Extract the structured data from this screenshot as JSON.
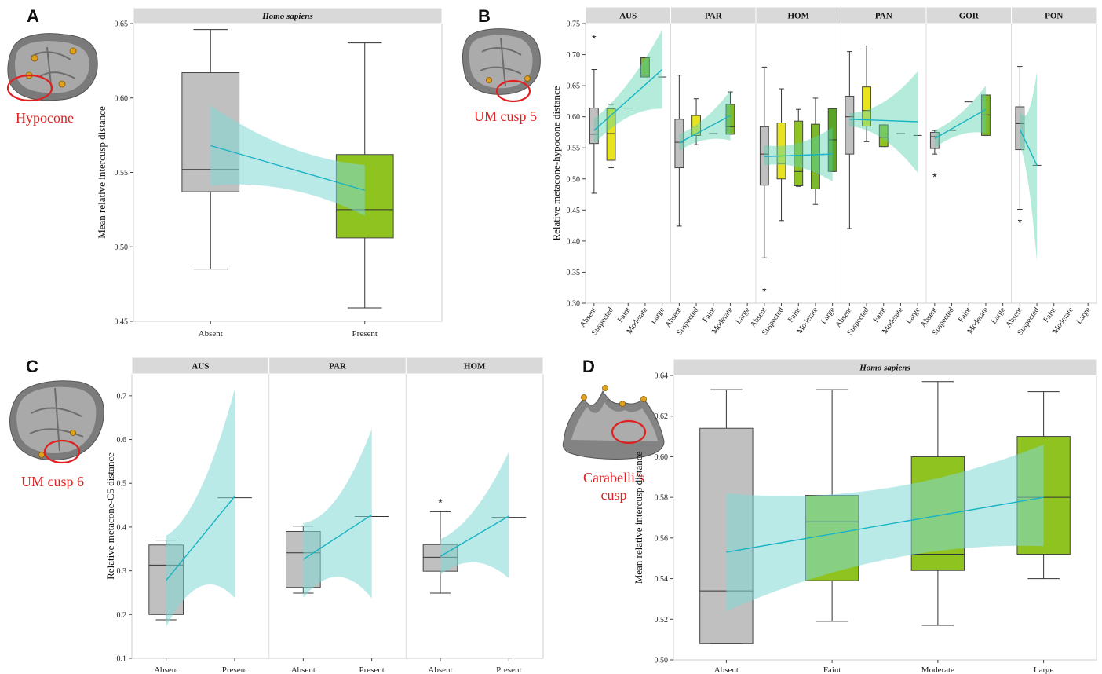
{
  "colors": {
    "absent": "#c0c0c0",
    "suspected": "#e7e41f",
    "faint": "#8fc31f",
    "moderate": "#7db82a",
    "large": "#5aa528",
    "ci_band": "#7fd8d6",
    "ci_band_B": "#59d3ae",
    "fit_line": "#18b3c4",
    "strip_bg": "#d9d9d9",
    "annotation": "#e02020"
  },
  "chart_data": [
    {
      "id": "A",
      "panel_letter": "A",
      "type": "box",
      "strip": [
        "Homo sapiens"
      ],
      "tooth_label": [
        "Hypocone"
      ],
      "ylabel": "Mean relative intercusp distance",
      "ylim": [
        0.45,
        0.65
      ],
      "yticks": [
        0.45,
        0.5,
        0.55,
        0.6,
        0.65
      ],
      "ytick_labels": [
        "0.45",
        "0.50",
        "0.55",
        "0.60",
        "0.65"
      ],
      "categories": [
        "Absent",
        "Present"
      ],
      "groups": [
        [
          {
            "cat": "Absent",
            "color": "absent",
            "min": 0.485,
            "q1": 0.537,
            "med": 0.552,
            "q3": 0.617,
            "max": 0.646
          },
          {
            "cat": "Present",
            "color": "faint",
            "min": 0.459,
            "q1": 0.506,
            "med": 0.525,
            "q3": 0.562,
            "max": 0.637
          }
        ]
      ],
      "fits": [
        {
          "y0": 0.568,
          "y1": 0.538,
          "lo0": 0.541,
          "hi0": 0.595,
          "lo1": 0.521,
          "hi1": 0.555
        }
      ],
      "outliers": []
    },
    {
      "id": "B",
      "panel_letter": "B",
      "type": "box",
      "strip": [
        "AUS",
        "PAR",
        "HOM",
        "PAN",
        "GOR",
        "PON"
      ],
      "tooth_label": [
        "UM cusp 5"
      ],
      "ylabel": "Relative metacone-hypocone distance",
      "ylim": [
        0.3,
        0.75
      ],
      "yticks": [
        0.3,
        0.35,
        0.4,
        0.45,
        0.5,
        0.55,
        0.6,
        0.65,
        0.7,
        0.75
      ],
      "ytick_labels": [
        "0.30",
        "0.35",
        "0.40",
        "0.45",
        "0.50",
        "0.55",
        "0.60",
        "0.65",
        "0.70",
        "0.75"
      ],
      "categories": [
        "Absent",
        "Suspected",
        "Faint",
        "Moderate",
        "Large"
      ],
      "groups": [
        [
          {
            "cat": "Absent",
            "color": "absent",
            "min": 0.477,
            "q1": 0.557,
            "med": 0.572,
            "q3": 0.614,
            "max": 0.676
          },
          {
            "cat": "Suspected",
            "color": "suspected",
            "min": 0.518,
            "q1": 0.53,
            "med": 0.573,
            "q3": 0.613,
            "max": 0.62
          },
          {
            "cat": "Faint",
            "color": "faint",
            "single": 0.614
          },
          {
            "cat": "Moderate",
            "color": "moderate",
            "min": 0.664,
            "q1": 0.664,
            "med": 0.667,
            "q3": 0.695,
            "max": 0.695
          },
          {
            "cat": "Large",
            "color": "large",
            "single": 0.664
          }
        ],
        [
          {
            "cat": "Absent",
            "color": "absent",
            "min": 0.424,
            "q1": 0.518,
            "med": 0.559,
            "q3": 0.596,
            "max": 0.667
          },
          {
            "cat": "Suspected",
            "color": "suspected",
            "min": 0.555,
            "q1": 0.57,
            "med": 0.585,
            "q3": 0.602,
            "max": 0.629
          },
          {
            "cat": "Faint",
            "color": "faint",
            "single": 0.573
          },
          {
            "cat": "Moderate",
            "color": "moderate",
            "min": 0.572,
            "q1": 0.572,
            "med": 0.584,
            "q3": 0.62,
            "max": 0.64
          }
        ],
        [
          {
            "cat": "Absent",
            "color": "absent",
            "min": 0.373,
            "q1": 0.49,
            "med": 0.54,
            "q3": 0.584,
            "max": 0.68
          },
          {
            "cat": "Suspected",
            "color": "suspected",
            "min": 0.433,
            "q1": 0.5,
            "med": 0.525,
            "q3": 0.59,
            "max": 0.645
          },
          {
            "cat": "Faint",
            "color": "faint",
            "min": 0.488,
            "q1": 0.489,
            "med": 0.512,
            "q3": 0.593,
            "max": 0.612
          },
          {
            "cat": "Moderate",
            "color": "moderate",
            "min": 0.459,
            "q1": 0.484,
            "med": 0.508,
            "q3": 0.588,
            "max": 0.63
          },
          {
            "cat": "Large",
            "color": "large",
            "min": 0.512,
            "q1": 0.512,
            "med": 0.563,
            "q3": 0.613,
            "max": 0.613
          }
        ],
        [
          {
            "cat": "Absent",
            "color": "absent",
            "min": 0.42,
            "q1": 0.54,
            "med": 0.6,
            "q3": 0.633,
            "max": 0.705
          },
          {
            "cat": "Suspected",
            "color": "suspected",
            "min": 0.56,
            "q1": 0.585,
            "med": 0.61,
            "q3": 0.648,
            "max": 0.714
          },
          {
            "cat": "Faint",
            "color": "faint",
            "min": 0.552,
            "q1": 0.552,
            "med": 0.567,
            "q3": 0.587,
            "max": 0.587
          },
          {
            "cat": "Moderate",
            "color": "moderate",
            "single": 0.573
          },
          {
            "cat": "Large",
            "color": "large",
            "single": 0.57
          }
        ],
        [
          {
            "cat": "Absent",
            "color": "absent",
            "min": 0.54,
            "q1": 0.549,
            "med": 0.568,
            "q3": 0.575,
            "max": 0.578
          },
          {
            "cat": "Suspected",
            "color": "suspected",
            "single": 0.578
          },
          {
            "cat": "Faint",
            "color": "faint",
            "single": 0.624
          },
          {
            "cat": "Moderate",
            "color": "moderate",
            "min": 0.57,
            "q1": 0.57,
            "med": 0.603,
            "q3": 0.635,
            "max": 0.635
          }
        ],
        [
          {
            "cat": "Absent",
            "color": "absent",
            "min": 0.451,
            "q1": 0.547,
            "med": 0.589,
            "q3": 0.616,
            "max": 0.681
          },
          {
            "cat": "Suspected",
            "color": "suspected",
            "single": 0.522
          }
        ]
      ],
      "fits": [
        {
          "x0": 0,
          "x1": 4,
          "y0": 0.578,
          "y1": 0.676,
          "lo0": 0.556,
          "hi0": 0.597,
          "lo1": 0.613,
          "hi1": 0.74
        },
        {
          "x0": 0,
          "x1": 3,
          "y0": 0.558,
          "y1": 0.602,
          "lo0": 0.545,
          "hi0": 0.572,
          "lo1": 0.562,
          "hi1": 0.642
        },
        {
          "x0": 0,
          "x1": 4,
          "y0": 0.536,
          "y1": 0.54,
          "lo0": 0.522,
          "hi0": 0.554,
          "lo1": 0.496,
          "hi1": 0.583
        },
        {
          "x0": 0,
          "x1": 4,
          "y0": 0.596,
          "y1": 0.592,
          "lo0": 0.585,
          "hi0": 0.606,
          "lo1": 0.51,
          "hi1": 0.673
        },
        {
          "x0": 0,
          "x1": 3,
          "y0": 0.565,
          "y1": 0.612,
          "lo0": 0.55,
          "hi0": 0.578,
          "lo1": 0.574,
          "hi1": 0.65
        },
        {
          "x0": 0,
          "x1": 1,
          "y0": 0.58,
          "y1": 0.522,
          "lo0": 0.553,
          "hi0": 0.609,
          "lo1": 0.368,
          "hi1": 0.672
        }
      ],
      "outliers": [
        {
          "group": 0,
          "cat": 0,
          "y": 0.73
        },
        {
          "group": 2,
          "cat": 0,
          "y": 0.323
        },
        {
          "group": 4,
          "cat": 0,
          "y": 0.507
        },
        {
          "group": 5,
          "cat": 0,
          "y": 0.434
        }
      ]
    },
    {
      "id": "C",
      "panel_letter": "C",
      "type": "box",
      "strip": [
        "AUS",
        "PAR",
        "HOM"
      ],
      "tooth_label": [
        "UM cusp 6"
      ],
      "ylabel": "Relative metacone-C5 distance",
      "ylim": [
        0.1,
        0.75
      ],
      "yticks": [
        0.1,
        0.2,
        0.3,
        0.4,
        0.5,
        0.6,
        0.7
      ],
      "ytick_labels": [
        "0.1",
        "0.2",
        "0.3",
        "0.4",
        "0.5",
        "0.6",
        "0.7"
      ],
      "categories": [
        "Absent",
        "Present"
      ],
      "groups": [
        [
          {
            "cat": "Absent",
            "color": "absent",
            "min": 0.188,
            "q1": 0.2,
            "med": 0.313,
            "q3": 0.359,
            "max": 0.37
          },
          {
            "cat": "Present",
            "color": "faint",
            "single": 0.467
          }
        ],
        [
          {
            "cat": "Absent",
            "color": "absent",
            "min": 0.249,
            "q1": 0.262,
            "med": 0.341,
            "q3": 0.39,
            "max": 0.402
          },
          {
            "cat": "Present",
            "color": "faint",
            "single": 0.424
          }
        ],
        [
          {
            "cat": "Absent",
            "color": "absent",
            "min": 0.249,
            "q1": 0.299,
            "med": 0.331,
            "q3": 0.36,
            "max": 0.435
          },
          {
            "cat": "Present",
            "color": "faint",
            "single": 0.422
          }
        ]
      ],
      "fits": [
        {
          "y0": 0.278,
          "y1": 0.47,
          "lo0": 0.172,
          "hi0": 0.38,
          "lo1": 0.238,
          "hi1": 0.715
        },
        {
          "y0": 0.326,
          "y1": 0.428,
          "lo0": 0.238,
          "hi0": 0.409,
          "lo1": 0.237,
          "hi1": 0.624
        },
        {
          "y0": 0.333,
          "y1": 0.425,
          "lo0": 0.291,
          "hi0": 0.372,
          "lo1": 0.283,
          "hi1": 0.572
        }
      ],
      "outliers": [
        {
          "group": 2,
          "cat": 0,
          "y": 0.462
        }
      ]
    },
    {
      "id": "D",
      "panel_letter": "D",
      "type": "box",
      "strip": [
        "Homo sapiens"
      ],
      "tooth_label": [
        "Carabelli’s",
        "cusp"
      ],
      "ylabel": "Mean relative intercusp distance",
      "ylim": [
        0.5,
        0.64
      ],
      "yticks": [
        0.5,
        0.52,
        0.54,
        0.56,
        0.58,
        0.6,
        0.62,
        0.64
      ],
      "ytick_labels": [
        "0.50",
        "0.52",
        "0.54",
        "0.56",
        "0.58",
        "0.60",
        "0.62",
        "0.64"
      ],
      "categories": [
        "Absent",
        "Faint",
        "Moderate",
        "Large"
      ],
      "groups": [
        [
          {
            "cat": "Absent",
            "color": "absent",
            "min": 0.508,
            "q1": 0.508,
            "med": 0.534,
            "q3": 0.614,
            "max": 0.633
          },
          {
            "cat": "Faint",
            "color": "faint",
            "min": 0.519,
            "q1": 0.539,
            "med": 0.568,
            "q3": 0.581,
            "max": 0.633
          },
          {
            "cat": "Moderate",
            "color": "faint",
            "min": 0.517,
            "q1": 0.544,
            "med": 0.552,
            "q3": 0.6,
            "max": 0.637
          },
          {
            "cat": "Large",
            "color": "faint",
            "min": 0.54,
            "q1": 0.552,
            "med": 0.58,
            "q3": 0.61,
            "max": 0.632
          }
        ]
      ],
      "fits": [
        {
          "y0": 0.553,
          "y1": 0.58,
          "lo0": 0.524,
          "hi0": 0.582,
          "lo1": 0.556,
          "hi1": 0.606
        }
      ],
      "outliers": []
    }
  ]
}
